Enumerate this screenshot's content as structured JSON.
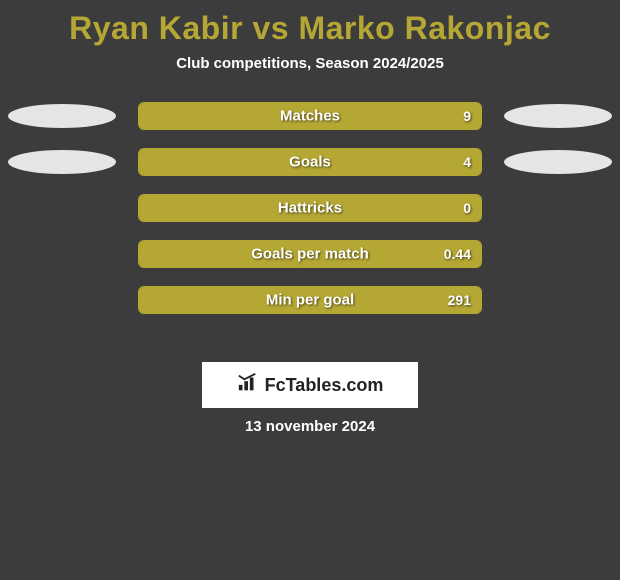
{
  "title": {
    "text": "Ryan Kabir vs Marko Rakonjac",
    "color": "#b5a734",
    "fontsize": 32,
    "fontweight": 800
  },
  "subtitle": {
    "text": "Club competitions, Season 2024/2025",
    "color": "#ffffff",
    "fontsize": 15,
    "fontweight": 700
  },
  "background_color": "#3c3c3c",
  "bar_color": "#b5a734",
  "ellipse_color": "#e5e5e5",
  "text_color": "#ffffff",
  "stats": [
    {
      "label": "Matches",
      "value": "9",
      "fill_pct": 100,
      "show_left_ellipse": true,
      "show_right_ellipse": true
    },
    {
      "label": "Goals",
      "value": "4",
      "fill_pct": 100,
      "show_left_ellipse": true,
      "show_right_ellipse": true
    },
    {
      "label": "Hattricks",
      "value": "0",
      "fill_pct": 100,
      "show_left_ellipse": false,
      "show_right_ellipse": false
    },
    {
      "label": "Goals per match",
      "value": "0.44",
      "fill_pct": 100,
      "show_left_ellipse": false,
      "show_right_ellipse": false
    },
    {
      "label": "Min per goal",
      "value": "291",
      "fill_pct": 100,
      "show_left_ellipse": false,
      "show_right_ellipse": false
    }
  ],
  "logo": {
    "text": "FcTables.com",
    "icon": "bar-chart-icon",
    "text_color": "#222222",
    "background": "#ffffff"
  },
  "footer_date": "13 november 2024"
}
